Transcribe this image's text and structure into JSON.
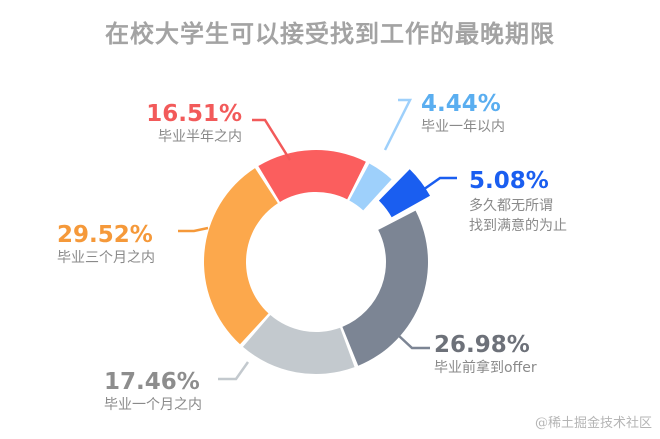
{
  "title": "在校大学生可以接受找到工作的最晚期限",
  "watermark": "@稀土掘金技术社区",
  "chart_data": {
    "type": "pie",
    "variant": "donut",
    "title": "在校大学生可以接受找到工作的最晚期限",
    "categories": [
      "毕业半年之内",
      "毕业一年以内",
      "多久都无所谓找到满意的为止",
      "毕业前拿到offer",
      "毕业一个月之内",
      "毕业三个月之内"
    ],
    "values": [
      16.51,
      4.44,
      5.08,
      26.98,
      17.46,
      29.52
    ],
    "colors": [
      "#fb5e5e",
      "#9ed0fb",
      "#1a5ef0",
      "#7c8594",
      "#c3c9ce",
      "#fca84c"
    ],
    "label_colors": [
      "#f25a5a",
      "#5aaef0",
      "#1a5ef0",
      "#6d7179",
      "#8d8d8d",
      "#f5993a"
    ],
    "exploded": [
      false,
      false,
      true,
      false,
      false,
      false
    ],
    "legend_position": "outside-labels"
  },
  "labels": [
    {
      "pct": "16.51%",
      "lines": [
        "毕业半年之内"
      ]
    },
    {
      "pct": "4.44%",
      "lines": [
        "毕业一年以内"
      ]
    },
    {
      "pct": "5.08%",
      "lines": [
        "多久都无所谓",
        "找到满意的为止"
      ]
    },
    {
      "pct": "26.98%",
      "lines": [
        "毕业前拿到offer"
      ]
    },
    {
      "pct": "17.46%",
      "lines": [
        "毕业一个月之内"
      ]
    },
    {
      "pct": "29.52%",
      "lines": [
        "毕业三个月之内"
      ]
    }
  ]
}
